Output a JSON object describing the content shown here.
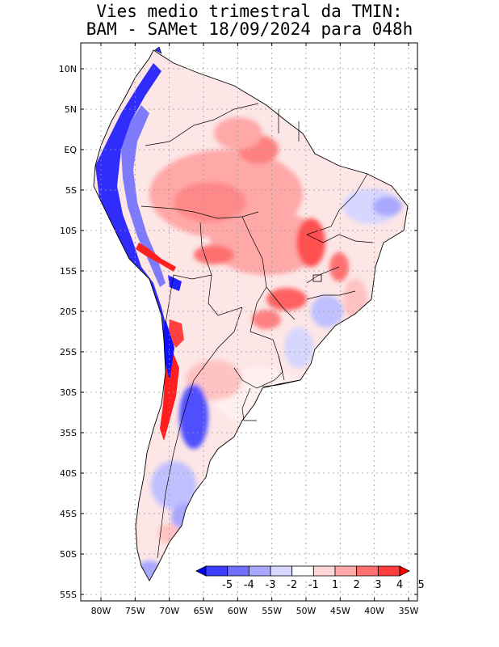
{
  "title": {
    "line1": "Vies medio trimestral da TMIN:",
    "line2": "BAM - SAMet 18/09/2024  para 048h"
  },
  "axes": {
    "lat_labels": [
      "10N",
      "5N",
      "EQ",
      "5S",
      "10S",
      "15S",
      "20S",
      "25S",
      "30S",
      "35S",
      "40S",
      "45S",
      "50S",
      "55S"
    ],
    "lon_labels": [
      "80W",
      "75W",
      "70W",
      "65W",
      "60W",
      "55W",
      "50W",
      "45W",
      "40W",
      "35W"
    ],
    "lat_range": [
      10,
      -55
    ],
    "lon_range": [
      -80,
      -35
    ]
  },
  "colorbar": {
    "labels": [
      "-5",
      "-4",
      "-3",
      "-2",
      "-1",
      "1",
      "2",
      "3",
      "4",
      "5"
    ],
    "colors": [
      "#0000ff",
      "#3d3dff",
      "#7070ff",
      "#a8a8ff",
      "#d6d6ff",
      "#ffffff",
      "#ffd6d6",
      "#ffa8a8",
      "#ff7070",
      "#ff3d3d",
      "#ff0000"
    ]
  },
  "map_style": {
    "grid": "dotted",
    "land_base": "#fbe3e3",
    "ocean": "#ffffff"
  }
}
